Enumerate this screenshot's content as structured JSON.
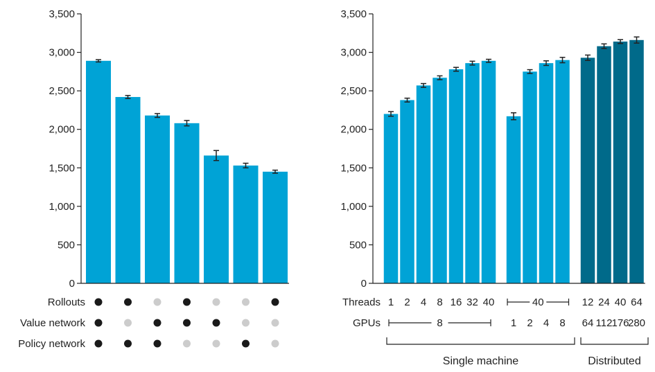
{
  "chart_data": [
    {
      "type": "bar",
      "ylim": [
        0,
        3500
      ],
      "yticks": [
        "0",
        "500",
        "1,000",
        "1,500",
        "2,000",
        "2,500",
        "3,000",
        "3,500"
      ],
      "bar_color": "#00a3d6",
      "values": [
        2890,
        2420,
        2180,
        2080,
        1660,
        1530,
        1450
      ],
      "errors": [
        15,
        20,
        25,
        35,
        65,
        30,
        20
      ],
      "rows": [
        {
          "label": "Rollouts",
          "flags": [
            true,
            true,
            false,
            true,
            false,
            false,
            true
          ]
        },
        {
          "label": "Value network",
          "flags": [
            true,
            false,
            true,
            true,
            true,
            false,
            false
          ]
        },
        {
          "label": "Policy network",
          "flags": [
            true,
            true,
            true,
            false,
            false,
            true,
            false
          ]
        }
      ],
      "dot_on_color": "#1a1a1a",
      "dot_off_color": "#cccccc"
    },
    {
      "type": "bar",
      "ylim": [
        0,
        3500
      ],
      "yticks": [
        "0",
        "500",
        "1,000",
        "1,500",
        "2,000",
        "2,500",
        "3,000",
        "3,500"
      ],
      "groups": [
        {
          "label": "Single machine",
          "color": "#00a3d6",
          "values": [
            2200,
            2380,
            2570,
            2670,
            2780,
            2860,
            2890
          ],
          "errors": [
            30,
            25,
            25,
            25,
            25,
            25,
            20
          ],
          "threads": [
            "1",
            "2",
            "4",
            "8",
            "16",
            "32",
            "40"
          ],
          "gpus_span": "8"
        },
        {
          "label": "",
          "color": "#00a3d6",
          "values": [
            2170,
            2750,
            2860,
            2900
          ],
          "errors": [
            45,
            25,
            30,
            35
          ],
          "threads_span": "40",
          "gpus": [
            "1",
            "2",
            "4",
            "8"
          ]
        },
        {
          "label": "Distributed",
          "color": "#006a8a",
          "values": [
            2930,
            3080,
            3140,
            3160
          ],
          "errors": [
            35,
            30,
            25,
            40
          ],
          "threads": [
            "12",
            "24",
            "40",
            "64"
          ],
          "gpus": [
            "64",
            "112",
            "176",
            "280"
          ]
        }
      ],
      "row_labels": {
        "threads": "Threads",
        "gpus": "GPUs"
      }
    }
  ]
}
